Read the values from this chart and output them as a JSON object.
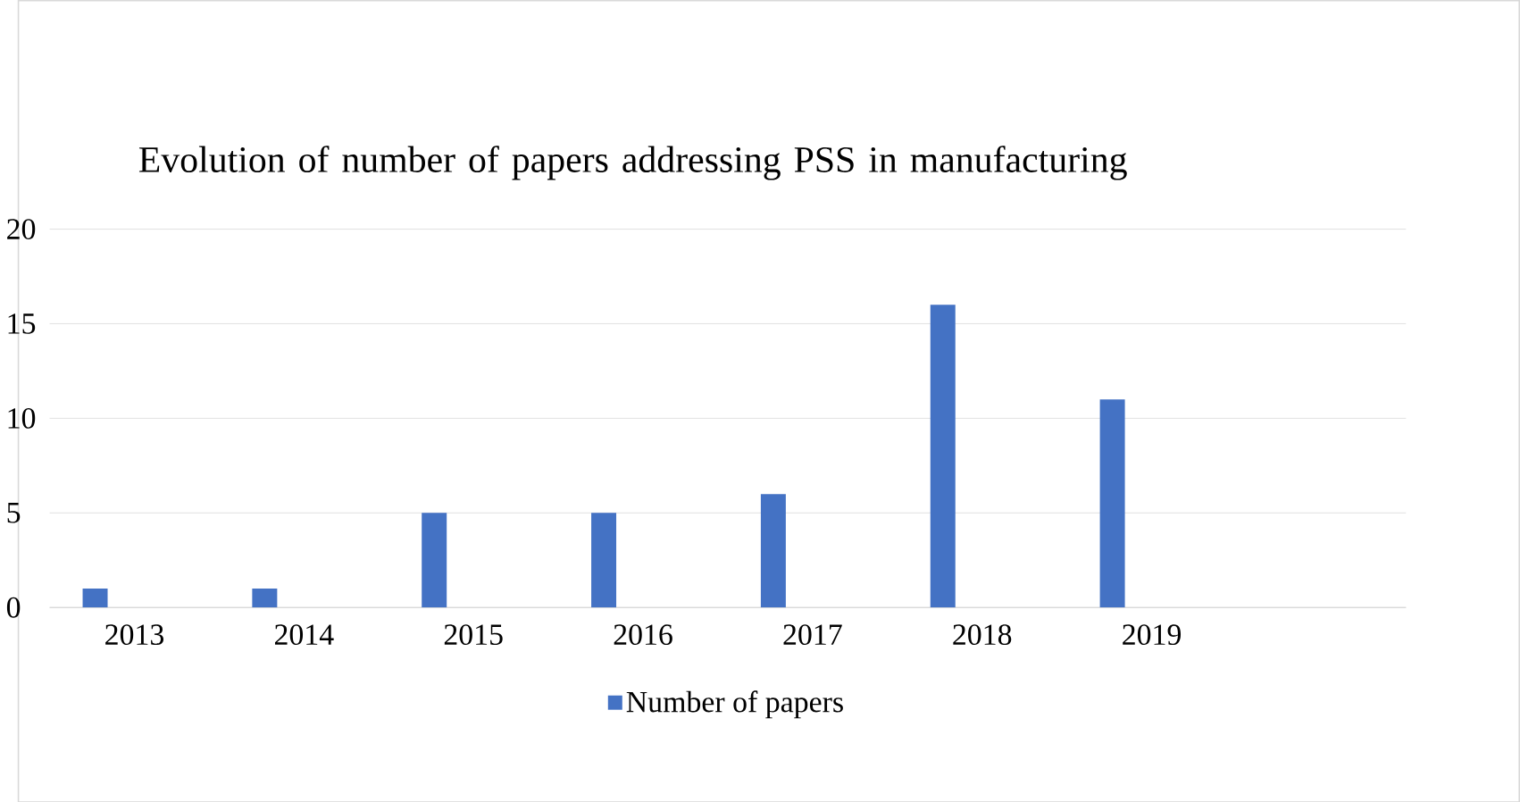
{
  "chart_data": {
    "type": "bar",
    "title": "Evolution of number of papers addressing PSS in manufacturing",
    "categories": [
      "2013",
      "2014",
      "2015",
      "2016",
      "2017",
      "2018",
      "2019",
      null
    ],
    "series": [
      {
        "name": "Number of papers",
        "color": "#4472c4",
        "values": [
          1,
          1,
          5,
          5,
          6,
          16,
          11,
          null
        ]
      }
    ],
    "ylim": [
      0,
      20
    ],
    "yticks": [
      0,
      5,
      10,
      15,
      20
    ],
    "grid": "y",
    "legend": "bottom"
  }
}
